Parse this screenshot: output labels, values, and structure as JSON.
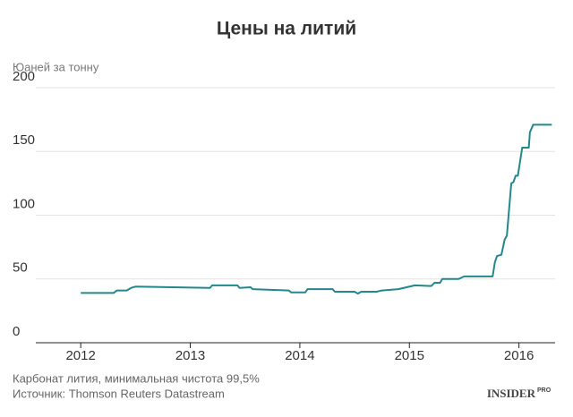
{
  "chart_data": {
    "type": "line",
    "title": "Цены на литий",
    "y_label": "Юаней за тонну",
    "x": [
      2012.0,
      2012.3,
      2012.33,
      2012.42,
      2012.46,
      2012.5,
      2013.18,
      2013.2,
      2013.43,
      2013.45,
      2013.55,
      2013.57,
      2013.9,
      2013.92,
      2014.05,
      2014.07,
      2014.3,
      2014.32,
      2014.5,
      2014.53,
      2014.56,
      2014.7,
      2014.75,
      2014.9,
      2015.05,
      2015.2,
      2015.23,
      2015.28,
      2015.3,
      2015.45,
      2015.5,
      2015.76,
      2015.78,
      2015.8,
      2015.84,
      2015.87,
      2015.89,
      2015.93,
      2015.95,
      2015.97,
      2015.99,
      2016.03,
      2016.09,
      2016.1,
      2016.13,
      2016.3
    ],
    "series": [
      {
        "name": "Карбонат лития",
        "color": "#23878c",
        "values": [
          39,
          39,
          41,
          41,
          43,
          44,
          43,
          45,
          45,
          43,
          43.5,
          42,
          41,
          39.5,
          39.5,
          42,
          42,
          40,
          40,
          38.5,
          40,
          40,
          41,
          42,
          45,
          44.5,
          47,
          47,
          50,
          50,
          52,
          52,
          63,
          68,
          69,
          81,
          84,
          125,
          126,
          131,
          131,
          153,
          153,
          165,
          171,
          171
        ]
      }
    ],
    "xlim": [
      2011.59,
      2016.33
    ],
    "xticks": [
      2012,
      2013,
      2014,
      2015,
      2016
    ],
    "ylim": [
      0,
      200
    ],
    "yticks": [
      0,
      50,
      100,
      150,
      200
    ],
    "grid": true,
    "notes": [
      "Карбонат лития, минимальная чистота 99,5%",
      "Источник: Thomson Reuters Datastream"
    ],
    "logo": {
      "main": "INSIDER",
      "sup": "PRO"
    }
  }
}
